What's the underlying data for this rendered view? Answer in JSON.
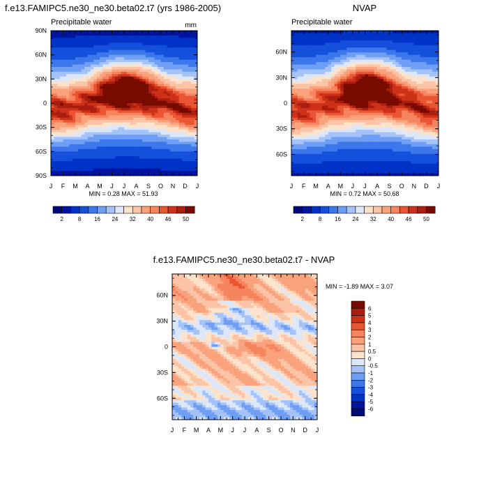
{
  "chart_data": [
    {
      "type": "heatmap",
      "title": "f.e13.FAMIPC5.ne30_ne30.beta02.t7 (yrs 1986-2005)",
      "subtitle_left": "Precipitable water",
      "subtitle_right": "mm",
      "x_tick_labels": [
        "J",
        "F",
        "M",
        "A",
        "M",
        "J",
        "J",
        "A",
        "S",
        "O",
        "N",
        "D",
        "J"
      ],
      "y_tick_labels": [
        "90N",
        "60N",
        "30N",
        "0",
        "30S",
        "60S",
        "90S"
      ],
      "y_tick_values": [
        90,
        60,
        30,
        0,
        -30,
        -60,
        -90
      ],
      "ylim": [
        -90,
        90
      ],
      "stats_text": "MIN =  0.28 MAX =  51.93",
      "min": 0.28,
      "max": 51.93,
      "model": {
        "eq_peak": 44,
        "itcz_amp": 10,
        "width": 37,
        "hemi_shift": 6
      },
      "colorbar": {
        "levels": [
          2,
          5,
          8,
          12,
          16,
          20,
          24,
          28,
          32,
          36,
          40,
          43,
          46,
          48,
          50
        ],
        "labels": [
          "2",
          "8",
          "16",
          "24",
          "32",
          "40",
          "46",
          "50"
        ],
        "label_levels": [
          2,
          8,
          16,
          24,
          32,
          40,
          46,
          50
        ]
      }
    },
    {
      "type": "heatmap",
      "title": "NVAP",
      "subtitle_left": "Precipitable water",
      "x_tick_labels": [
        "J",
        "F",
        "M",
        "A",
        "M",
        "J",
        "J",
        "A",
        "S",
        "O",
        "N",
        "D",
        "J"
      ],
      "y_tick_labels": [
        "60N",
        "30N",
        "0",
        "30S",
        "60S"
      ],
      "y_tick_values": [
        60,
        30,
        0,
        -30,
        -60
      ],
      "ylim": [
        -85,
        85
      ],
      "stats_text": "MIN =  0.72 MAX =  50.68",
      "min": 0.72,
      "max": 50.68,
      "model": {
        "eq_peak": 43,
        "itcz_amp": 10,
        "width": 37,
        "hemi_shift": 6
      },
      "colorbar": {
        "levels": [
          2,
          5,
          8,
          12,
          16,
          20,
          24,
          28,
          32,
          36,
          40,
          43,
          46,
          48,
          50
        ],
        "labels": [
          "2",
          "8",
          "16",
          "24",
          "32",
          "40",
          "46",
          "50"
        ],
        "label_levels": [
          2,
          8,
          16,
          24,
          32,
          40,
          46,
          50
        ]
      }
    },
    {
      "type": "heatmap",
      "title": "f.e13.FAMIPC5.ne30_ne30.beta02.t7 - NVAP",
      "x_tick_labels": [
        "J",
        "F",
        "M",
        "A",
        "M",
        "J",
        "J",
        "A",
        "S",
        "O",
        "N",
        "D",
        "J"
      ],
      "y_tick_labels": [
        "60N",
        "30N",
        "0",
        "30S",
        "60S"
      ],
      "y_tick_values": [
        60,
        30,
        0,
        -30,
        -60
      ],
      "ylim": [
        -85,
        85
      ],
      "stats_text": "MIN = -1.89 MAX =   3.07",
      "min": -1.89,
      "max": 3.07,
      "colorbar": {
        "levels": [
          -6,
          -5,
          -4,
          -3,
          -2,
          -1,
          -0.5,
          0,
          0.5,
          1,
          2,
          3,
          4,
          5,
          6
        ],
        "labels": [
          "6",
          "5",
          "4",
          "3",
          "2",
          "1",
          "0.5",
          "0",
          "-0.5",
          "-1",
          "-2",
          "-3",
          "-4",
          "-5",
          "-6"
        ]
      }
    }
  ],
  "colors": {
    "ramp15": [
      "#000a78",
      "#0014a0",
      "#0032c8",
      "#1450dc",
      "#3c78eb",
      "#6e9ff5",
      "#a5c3f8",
      "#dce8fa",
      "#fde2cc",
      "#f9b596",
      "#f5845f",
      "#ea5532",
      "#cd3219",
      "#aa1e0f",
      "#780a00"
    ],
    "ramp16": [
      "#000a78",
      "#0014a0",
      "#0032c8",
      "#1450dc",
      "#3c78eb",
      "#6e9ff5",
      "#a5c3f8",
      "#dce8fa",
      "#fde2cc",
      "#fcc4a7",
      "#f9a27c",
      "#f5845f",
      "#ea5532",
      "#cd3219",
      "#aa1e0f",
      "#780a00"
    ]
  }
}
